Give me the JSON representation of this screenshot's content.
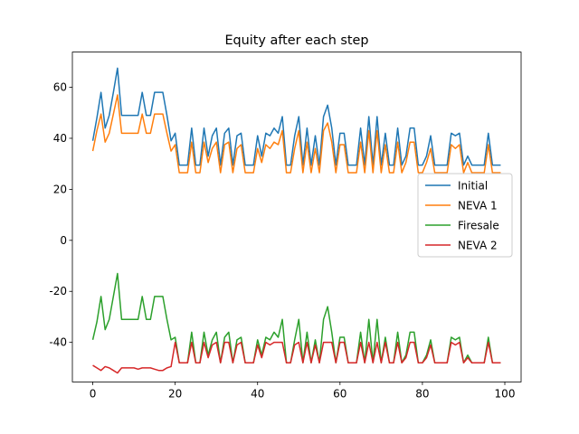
{
  "chart_data": {
    "type": "line",
    "title": "Equity after each step",
    "x": [
      0,
      1,
      2,
      3,
      4,
      5,
      6,
      7,
      8,
      9,
      10,
      11,
      12,
      13,
      14,
      15,
      16,
      17,
      18,
      19,
      20,
      21,
      22,
      23,
      24,
      25,
      26,
      27,
      28,
      29,
      30,
      31,
      32,
      33,
      34,
      35,
      36,
      37,
      38,
      39,
      40,
      41,
      42,
      43,
      44,
      45,
      46,
      47,
      48,
      49,
      50,
      51,
      52,
      53,
      54,
      55,
      56,
      57,
      58,
      59,
      60,
      61,
      62,
      63,
      64,
      65,
      66,
      67,
      68,
      69,
      70,
      71,
      72,
      73,
      74,
      75,
      76,
      77,
      78,
      79,
      80,
      81,
      82,
      83,
      84,
      85,
      86,
      87,
      88,
      89,
      90,
      91,
      92,
      93,
      94,
      95,
      96,
      97,
      98,
      99
    ],
    "series": [
      {
        "name": "Initial",
        "color": "#1f77b4",
        "values": [
          39,
          48,
          58,
          44,
          49,
          58,
          67.5,
          49,
          49,
          49,
          49,
          49,
          58,
          49,
          49,
          58,
          58,
          58,
          49,
          39,
          42,
          29.5,
          29.5,
          29.5,
          44,
          29.5,
          29.5,
          44,
          33,
          41,
          44,
          29.5,
          42,
          44,
          29.5,
          41,
          42,
          29.5,
          29.5,
          29.5,
          41,
          33,
          42,
          41,
          44,
          42,
          48.5,
          29.5,
          29.5,
          41,
          48.5,
          29.5,
          44,
          29.5,
          41,
          29.5,
          48.5,
          53,
          44,
          29.5,
          42,
          42,
          29.5,
          29.5,
          29.5,
          44,
          29.5,
          48.5,
          29.5,
          48.5,
          29.5,
          42,
          29.5,
          29.5,
          44,
          29.5,
          33,
          44,
          44,
          29.5,
          29.5,
          33,
          41,
          29.5,
          29.5,
          29.5,
          29.5,
          42,
          41,
          42,
          29.5,
          33,
          29.5,
          29.5,
          29.5,
          29.5,
          42,
          29.5,
          29.5,
          29.5
        ]
      },
      {
        "name": "NEVA 1",
        "color": "#ff7f0e",
        "values": [
          35,
          43,
          49.5,
          38.5,
          42,
          49.5,
          57,
          42,
          42,
          42,
          42,
          42,
          49.5,
          42,
          42,
          49.5,
          49.5,
          49.5,
          42,
          35,
          37.5,
          26.5,
          26.5,
          26.5,
          38.5,
          26.5,
          26.5,
          38.5,
          30.5,
          36,
          38.5,
          26.5,
          37.5,
          38.5,
          26.5,
          36,
          37.5,
          26.5,
          26.5,
          26.5,
          36,
          30.5,
          37.5,
          36,
          38.5,
          37.5,
          43,
          26.5,
          26.5,
          36,
          43,
          26.5,
          38.5,
          26.5,
          36,
          26.5,
          43,
          46,
          38.5,
          26.5,
          37.5,
          37.5,
          26.5,
          26.5,
          26.5,
          38.5,
          26.5,
          43,
          26.5,
          43,
          26.5,
          37.5,
          26.5,
          26.5,
          38.5,
          26.5,
          30.5,
          38.5,
          38.5,
          26.5,
          26.5,
          30.5,
          36,
          26.5,
          26.5,
          26.5,
          26.5,
          37.5,
          36,
          37.5,
          26.5,
          30.5,
          26.5,
          26.5,
          26.5,
          26.5,
          37.5,
          26.5,
          26.5,
          26.5
        ]
      },
      {
        "name": "Firesale",
        "color": "#2ca02c",
        "values": [
          -39,
          -32,
          -22,
          -35,
          -31,
          -22,
          -13,
          -31,
          -31,
          -31,
          -31,
          -31,
          -22,
          -31,
          -31,
          -22,
          -22,
          -22,
          -31,
          -39,
          -38,
          -48,
          -48,
          -48,
          -36,
          -48,
          -48,
          -36,
          -45,
          -39,
          -36,
          -48,
          -38,
          -36,
          -48,
          -39,
          -38,
          -48,
          -48,
          -48,
          -39,
          -45,
          -38,
          -39,
          -36,
          -38,
          -31,
          -48,
          -48,
          -39,
          -31,
          -48,
          -36,
          -48,
          -39,
          -48,
          -31,
          -26,
          -36,
          -48,
          -38,
          -38,
          -48,
          -48,
          -48,
          -36,
          -48,
          -31,
          -48,
          -31,
          -48,
          -38,
          -48,
          -48,
          -36,
          -48,
          -45,
          -36,
          -36,
          -48,
          -48,
          -45,
          -39,
          -48,
          -48,
          -48,
          -48,
          -38,
          -39,
          -38,
          -48,
          -45,
          -48,
          -48,
          -48,
          -48,
          -38,
          -48,
          -48,
          -48
        ]
      },
      {
        "name": "NEVA 2",
        "color": "#d62728",
        "values": [
          -49,
          -50,
          -51,
          -49.5,
          -50,
          -51,
          -52,
          -50,
          -50,
          -50,
          -50,
          -50.5,
          -50,
          -50,
          -50,
          -50.5,
          -51,
          -51,
          -50,
          -49.5,
          -40,
          -48,
          -48,
          -48,
          -40,
          -48,
          -48,
          -40,
          -46,
          -41,
          -40,
          -48,
          -40,
          -40,
          -48,
          -41,
          -40,
          -48,
          -48,
          -48,
          -41,
          -46,
          -40,
          -41,
          -40,
          -40,
          -40,
          -48,
          -48,
          -41,
          -40,
          -48,
          -40,
          -48,
          -41,
          -48,
          -40,
          -40,
          -40,
          -48,
          -40,
          -40,
          -48,
          -48,
          -48,
          -40,
          -48,
          -40,
          -48,
          -40,
          -48,
          -40,
          -48,
          -48,
          -40,
          -48,
          -46,
          -40,
          -40,
          -48,
          -48,
          -46,
          -41,
          -48,
          -48,
          -48,
          -48,
          -40,
          -41,
          -40,
          -48,
          -46,
          -48,
          -48,
          -48,
          -48,
          -40,
          -48,
          -48,
          -48
        ]
      }
    ],
    "xlim": [
      -4.95,
      103.95
    ],
    "xticks": [
      0,
      20,
      40,
      60,
      80,
      100
    ],
    "ylim": [
      -55.5,
      73.8
    ],
    "yticks": [
      -40,
      -20,
      0,
      20,
      40,
      60
    ],
    "legend": "center right"
  }
}
